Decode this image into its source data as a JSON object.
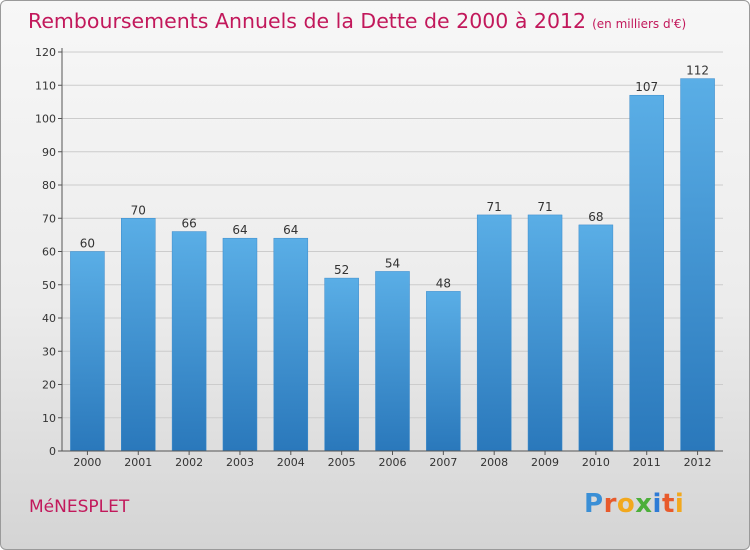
{
  "title": "Remboursements Annuels de la Dette de 2000 à 2012",
  "unit_note": "(en milliers d'€)",
  "place": "MéNESPLET",
  "logo": {
    "text": "Proxiti",
    "letters": [
      "P",
      "r",
      "o",
      "x",
      "i",
      "t",
      "i"
    ],
    "colors": [
      "#3a8fd6",
      "#e85a2b",
      "#f2a81d",
      "#4caf3a",
      "#2e7bd6",
      "#e85a2b",
      "#f2a81d"
    ]
  },
  "colors": {
    "title": "#c2185b",
    "bar_top": "#5aaee6",
    "bar_bottom": "#2a78bb",
    "grid": "#cccccc"
  },
  "chart_data": {
    "type": "bar",
    "categories": [
      "2000",
      "2001",
      "2002",
      "2003",
      "2004",
      "2005",
      "2006",
      "2007",
      "2008",
      "2009",
      "2010",
      "2011",
      "2012"
    ],
    "values": [
      60,
      70,
      66,
      64,
      64,
      52,
      54,
      48,
      71,
      71,
      68,
      107,
      112
    ],
    "ylim": [
      0,
      120
    ],
    "yticks": [
      0,
      10,
      20,
      30,
      40,
      50,
      60,
      70,
      80,
      90,
      100,
      110,
      120
    ],
    "grid": true
  }
}
